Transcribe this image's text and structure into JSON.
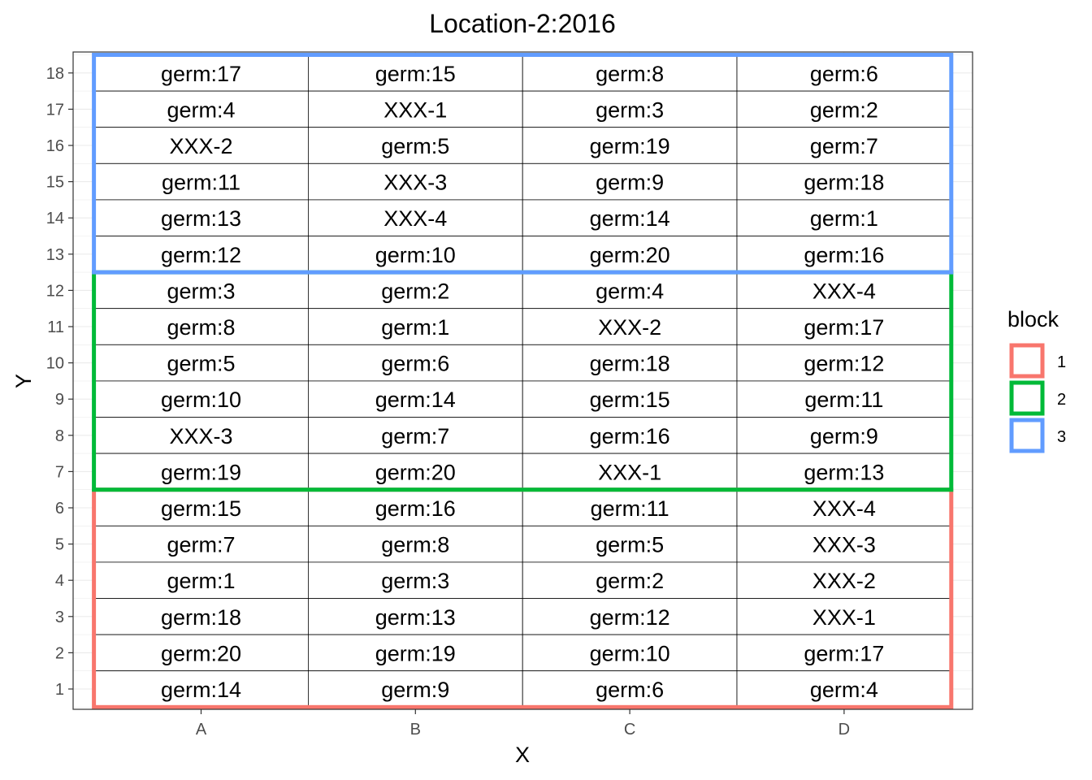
{
  "chart_data": {
    "type": "table",
    "title": "Location-2:2016",
    "xlabel": "X",
    "ylabel": "Y",
    "x_categories": [
      "A",
      "B",
      "C",
      "D"
    ],
    "y_ticks": [
      "1",
      "2",
      "3",
      "4",
      "5",
      "6",
      "7",
      "8",
      "9",
      "10",
      "11",
      "12",
      "13",
      "14",
      "15",
      "16",
      "17",
      "18"
    ],
    "legend": {
      "title": "block",
      "position": "right",
      "entries": [
        {
          "label": "1",
          "color": "#F8766D"
        },
        {
          "label": "2",
          "color": "#00BA38"
        },
        {
          "label": "3",
          "color": "#619CFF"
        }
      ]
    },
    "blocks": [
      {
        "block": "1",
        "y_range": [
          1,
          6
        ],
        "color": "#F8766D"
      },
      {
        "block": "2",
        "y_range": [
          7,
          12
        ],
        "color": "#00BA38"
      },
      {
        "block": "3",
        "y_range": [
          13,
          18
        ],
        "color": "#619CFF"
      }
    ],
    "rows": [
      {
        "y": 18,
        "cells": [
          "germ:17",
          "germ:15",
          "germ:8",
          "germ:6"
        ]
      },
      {
        "y": 17,
        "cells": [
          "germ:4",
          "XXX-1",
          "germ:3",
          "germ:2"
        ]
      },
      {
        "y": 16,
        "cells": [
          "XXX-2",
          "germ:5",
          "germ:19",
          "germ:7"
        ]
      },
      {
        "y": 15,
        "cells": [
          "germ:11",
          "XXX-3",
          "germ:9",
          "germ:18"
        ]
      },
      {
        "y": 14,
        "cells": [
          "germ:13",
          "XXX-4",
          "germ:14",
          "germ:1"
        ]
      },
      {
        "y": 13,
        "cells": [
          "germ:12",
          "germ:10",
          "germ:20",
          "germ:16"
        ]
      },
      {
        "y": 12,
        "cells": [
          "germ:3",
          "germ:2",
          "germ:4",
          "XXX-4"
        ]
      },
      {
        "y": 11,
        "cells": [
          "germ:8",
          "germ:1",
          "XXX-2",
          "germ:17"
        ]
      },
      {
        "y": 10,
        "cells": [
          "germ:5",
          "germ:6",
          "germ:18",
          "germ:12"
        ]
      },
      {
        "y": 9,
        "cells": [
          "germ:10",
          "germ:14",
          "germ:15",
          "germ:11"
        ]
      },
      {
        "y": 8,
        "cells": [
          "XXX-3",
          "germ:7",
          "germ:16",
          "germ:9"
        ]
      },
      {
        "y": 7,
        "cells": [
          "germ:19",
          "germ:20",
          "XXX-1",
          "germ:13"
        ]
      },
      {
        "y": 6,
        "cells": [
          "germ:15",
          "germ:16",
          "germ:11",
          "XXX-4"
        ]
      },
      {
        "y": 5,
        "cells": [
          "germ:7",
          "germ:8",
          "germ:5",
          "XXX-3"
        ]
      },
      {
        "y": 4,
        "cells": [
          "germ:1",
          "germ:3",
          "germ:2",
          "XXX-2"
        ]
      },
      {
        "y": 3,
        "cells": [
          "germ:18",
          "germ:13",
          "germ:12",
          "XXX-1"
        ]
      },
      {
        "y": 2,
        "cells": [
          "germ:20",
          "germ:19",
          "germ:10",
          "germ:17"
        ]
      },
      {
        "y": 1,
        "cells": [
          "germ:14",
          "germ:9",
          "germ:6",
          "germ:4"
        ]
      }
    ],
    "grid": true,
    "theme": "bw"
  }
}
